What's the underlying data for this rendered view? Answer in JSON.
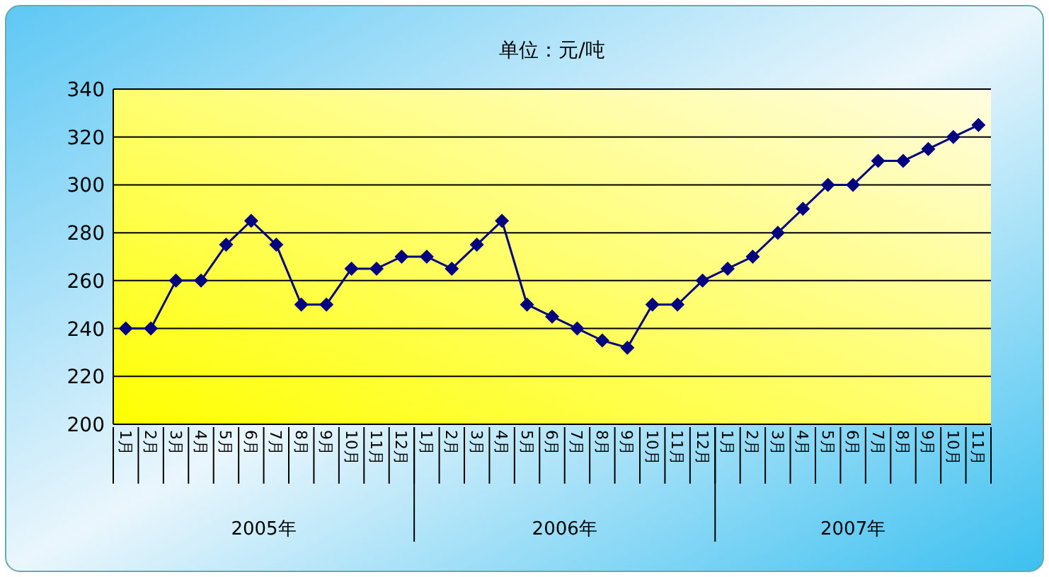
{
  "chart_data": {
    "type": "line",
    "title": "单位：元/吨",
    "categories": [
      "1月",
      "2月",
      "3月",
      "4月",
      "5月",
      "6月",
      "7月",
      "8月",
      "9月",
      "10月",
      "11月",
      "12月",
      "1月",
      "2月",
      "3月",
      "4月",
      "5月",
      "6月",
      "7月",
      "8月",
      "9月",
      "10月",
      "11月",
      "12月",
      "1月",
      "2月",
      "3月",
      "4月",
      "5月",
      "6月",
      "7月",
      "8月",
      "9月",
      "10月",
      "11月"
    ],
    "series": [
      {
        "color": "#000080",
        "values": [
          240,
          240,
          260,
          260,
          275,
          285,
          275,
          250,
          250,
          265,
          265,
          270,
          270,
          265,
          275,
          285,
          250,
          245,
          240,
          235,
          232,
          250,
          250,
          260,
          265,
          270,
          280,
          290,
          300,
          300,
          310,
          310,
          315,
          320,
          325
        ]
      }
    ],
    "annotations": [
      "2005年",
      "2006年",
      "2007年"
    ],
    "ylim": [
      200,
      340
    ],
    "yticks": [
      200,
      220,
      240,
      260,
      280,
      300,
      320,
      340
    ],
    "grid": "y",
    "marker": "diamond",
    "line_style": "solid"
  }
}
